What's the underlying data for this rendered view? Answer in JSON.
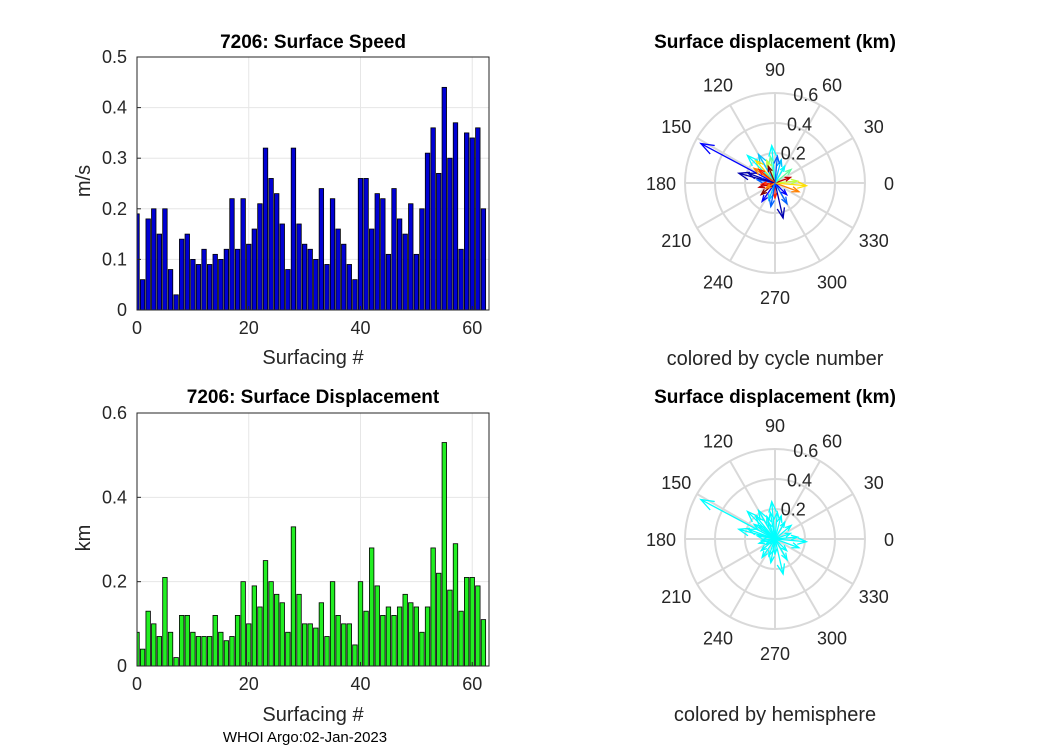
{
  "footer": "WHOI Argo:02-Jan-2023",
  "chart_data": [
    {
      "type": "bar",
      "title": "7206: Surface Speed",
      "xlabel": "Surfacing #",
      "ylabel": "m/s",
      "xlim": [
        0,
        63
      ],
      "ylim": [
        0,
        0.5
      ],
      "xticks": [
        "0",
        "20",
        "40",
        "60"
      ],
      "yticks": [
        "0",
        "0.1",
        "0.2",
        "0.3",
        "0.4",
        "0.5"
      ],
      "bar_color": "#0000d4",
      "values": [
        0.19,
        0.06,
        0.18,
        0.2,
        0.15,
        0.2,
        0.08,
        0.03,
        0.14,
        0.15,
        0.1,
        0.09,
        0.12,
        0.09,
        0.11,
        0.1,
        0.12,
        0.22,
        0.12,
        0.22,
        0.13,
        0.16,
        0.21,
        0.32,
        0.26,
        0.23,
        0.17,
        0.08,
        0.32,
        0.17,
        0.13,
        0.12,
        0.1,
        0.24,
        0.09,
        0.22,
        0.16,
        0.13,
        0.09,
        0.06,
        0.26,
        0.26,
        0.16,
        0.23,
        0.22,
        0.11,
        0.24,
        0.18,
        0.15,
        0.21,
        0.11,
        0.2,
        0.31,
        0.36,
        0.27,
        0.44,
        0.3,
        0.37,
        0.12,
        0.35,
        0.34,
        0.36,
        0.2
      ]
    },
    {
      "type": "bar",
      "title": "7206: Surface Displacement",
      "xlabel": "Surfacing #",
      "ylabel": "km",
      "xlim": [
        0,
        63
      ],
      "ylim": [
        0,
        0.6
      ],
      "xticks": [
        "0",
        "20",
        "40",
        "60"
      ],
      "yticks": [
        "0",
        "0.2",
        "0.4",
        "0.6"
      ],
      "bar_color": "#22ee22",
      "values": [
        0.08,
        0.04,
        0.13,
        0.1,
        0.07,
        0.21,
        0.08,
        0.02,
        0.12,
        0.12,
        0.08,
        0.07,
        0.07,
        0.07,
        0.12,
        0.08,
        0.06,
        0.07,
        0.12,
        0.2,
        0.1,
        0.19,
        0.14,
        0.25,
        0.2,
        0.17,
        0.15,
        0.08,
        0.33,
        0.17,
        0.1,
        0.1,
        0.09,
        0.15,
        0.07,
        0.2,
        0.12,
        0.1,
        0.1,
        0.05,
        0.2,
        0.13,
        0.28,
        0.19,
        0.12,
        0.14,
        0.12,
        0.14,
        0.17,
        0.15,
        0.14,
        0.08,
        0.14,
        0.28,
        0.22,
        0.53,
        0.18,
        0.29,
        0.13,
        0.21,
        0.21,
        0.19,
        0.11
      ]
    },
    {
      "type": "polar-compass",
      "title": "Surface displacement (km)",
      "caption": "colored by cycle number",
      "rmax": 0.6,
      "rticks": [
        "0.2",
        "0.4",
        "0.6"
      ],
      "angle_labels": [
        "0",
        "30",
        "60",
        "90",
        "120",
        "150",
        "180",
        "210",
        "240",
        "270",
        "300",
        "330"
      ],
      "colors": [
        "#0000b0",
        "#0000ff",
        "#0060ff",
        "#00c0ff",
        "#00ffff",
        "#60ff9f",
        "#c0ff40",
        "#ffe000",
        "#ff8000",
        "#ff2000",
        "#c00000",
        "#800000"
      ],
      "arrows": [
        {
          "deg": 152,
          "r": 0.56,
          "c": 1
        },
        {
          "deg": 120,
          "r": 0.22,
          "c": 3
        },
        {
          "deg": 95,
          "r": 0.25,
          "c": 4
        },
        {
          "deg": 100,
          "r": 0.18,
          "c": 5
        },
        {
          "deg": 110,
          "r": 0.16,
          "c": 6
        },
        {
          "deg": 130,
          "r": 0.2,
          "c": 7
        },
        {
          "deg": 145,
          "r": 0.17,
          "c": 8
        },
        {
          "deg": 160,
          "r": 0.19,
          "c": 0
        },
        {
          "deg": 170,
          "r": 0.12,
          "c": 2
        },
        {
          "deg": 185,
          "r": 0.09,
          "c": 9
        },
        {
          "deg": 195,
          "r": 0.11,
          "c": 10
        },
        {
          "deg": 220,
          "r": 0.12,
          "c": 11
        },
        {
          "deg": 235,
          "r": 0.15,
          "c": 1
        },
        {
          "deg": 250,
          "r": 0.12,
          "c": 3
        },
        {
          "deg": 270,
          "r": 0.1,
          "c": 9
        },
        {
          "deg": 283,
          "r": 0.24,
          "c": 0
        },
        {
          "deg": 300,
          "r": 0.16,
          "c": 2
        },
        {
          "deg": 315,
          "r": 0.11,
          "c": 1
        },
        {
          "deg": 340,
          "r": 0.17,
          "c": 8
        },
        {
          "deg": 355,
          "r": 0.21,
          "c": 7
        },
        {
          "deg": 5,
          "r": 0.15,
          "c": 6
        },
        {
          "deg": 20,
          "r": 0.11,
          "c": 10
        },
        {
          "deg": 40,
          "r": 0.14,
          "c": 5
        },
        {
          "deg": 60,
          "r": 0.13,
          "c": 4
        },
        {
          "deg": 75,
          "r": 0.16,
          "c": 3
        },
        {
          "deg": 85,
          "r": 0.18,
          "c": 2
        },
        {
          "deg": 112,
          "r": 0.12,
          "c": 11
        },
        {
          "deg": 135,
          "r": 0.26,
          "c": 4
        },
        {
          "deg": 140,
          "r": 0.14,
          "c": 9
        },
        {
          "deg": 165,
          "r": 0.25,
          "c": 0
        },
        {
          "deg": 210,
          "r": 0.07,
          "c": 8
        },
        {
          "deg": 260,
          "r": 0.16,
          "c": 2
        }
      ]
    },
    {
      "type": "polar-compass",
      "title": "Surface displacement (km)",
      "caption": "colored by hemisphere",
      "rmax": 0.6,
      "rticks": [
        "0.2",
        "0.4",
        "0.6"
      ],
      "angle_labels": [
        "0",
        "30",
        "60",
        "90",
        "120",
        "150",
        "180",
        "210",
        "240",
        "270",
        "300",
        "330"
      ],
      "colors": [
        "#00ffff"
      ],
      "arrows": [
        {
          "deg": 152,
          "r": 0.56,
          "c": 0
        },
        {
          "deg": 120,
          "r": 0.22,
          "c": 0
        },
        {
          "deg": 95,
          "r": 0.25,
          "c": 0
        },
        {
          "deg": 100,
          "r": 0.18,
          "c": 0
        },
        {
          "deg": 110,
          "r": 0.16,
          "c": 0
        },
        {
          "deg": 130,
          "r": 0.2,
          "c": 0
        },
        {
          "deg": 145,
          "r": 0.17,
          "c": 0
        },
        {
          "deg": 160,
          "r": 0.19,
          "c": 0
        },
        {
          "deg": 170,
          "r": 0.12,
          "c": 0
        },
        {
          "deg": 185,
          "r": 0.09,
          "c": 0
        },
        {
          "deg": 195,
          "r": 0.11,
          "c": 0
        },
        {
          "deg": 220,
          "r": 0.12,
          "c": 0
        },
        {
          "deg": 235,
          "r": 0.15,
          "c": 0
        },
        {
          "deg": 250,
          "r": 0.12,
          "c": 0
        },
        {
          "deg": 270,
          "r": 0.1,
          "c": 0
        },
        {
          "deg": 283,
          "r": 0.24,
          "c": 0
        },
        {
          "deg": 300,
          "r": 0.16,
          "c": 0
        },
        {
          "deg": 315,
          "r": 0.11,
          "c": 0
        },
        {
          "deg": 340,
          "r": 0.17,
          "c": 0
        },
        {
          "deg": 355,
          "r": 0.21,
          "c": 0
        },
        {
          "deg": 5,
          "r": 0.15,
          "c": 0
        },
        {
          "deg": 20,
          "r": 0.11,
          "c": 0
        },
        {
          "deg": 40,
          "r": 0.14,
          "c": 0
        },
        {
          "deg": 60,
          "r": 0.13,
          "c": 0
        },
        {
          "deg": 75,
          "r": 0.16,
          "c": 0
        },
        {
          "deg": 85,
          "r": 0.18,
          "c": 0
        },
        {
          "deg": 112,
          "r": 0.12,
          "c": 0
        },
        {
          "deg": 135,
          "r": 0.26,
          "c": 0
        },
        {
          "deg": 140,
          "r": 0.14,
          "c": 0
        },
        {
          "deg": 165,
          "r": 0.25,
          "c": 0
        },
        {
          "deg": 210,
          "r": 0.07,
          "c": 0
        },
        {
          "deg": 260,
          "r": 0.16,
          "c": 0
        }
      ]
    }
  ]
}
